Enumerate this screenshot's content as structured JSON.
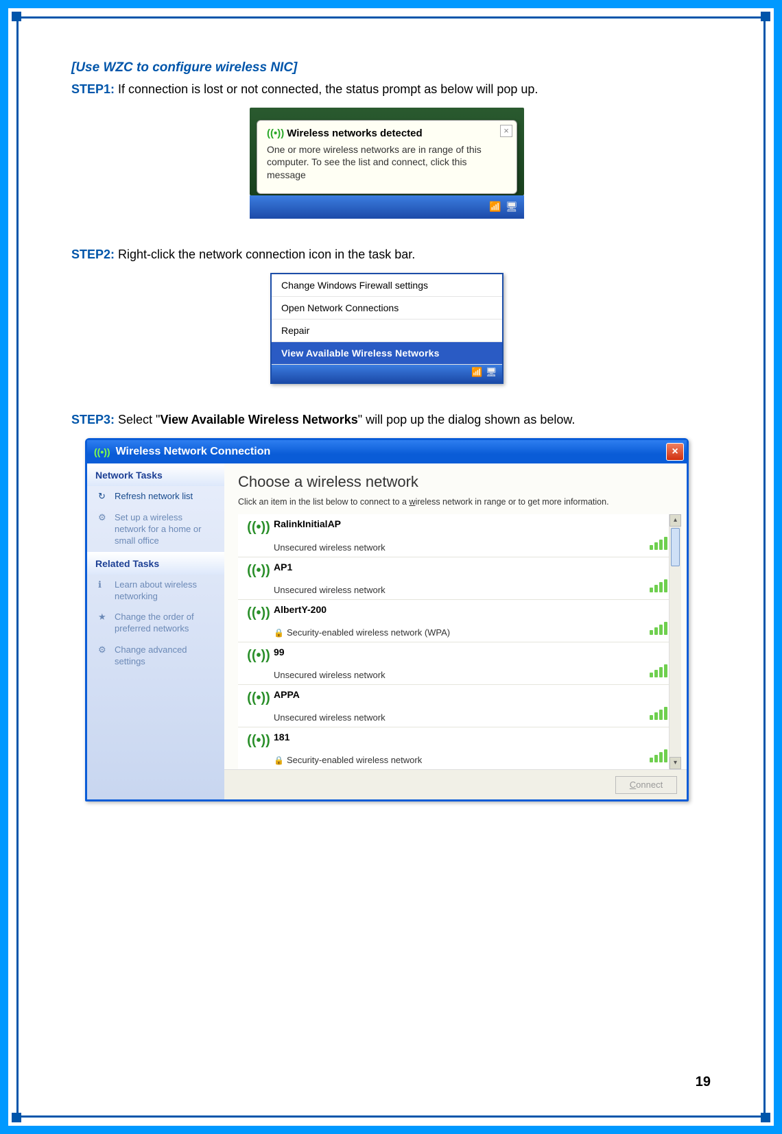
{
  "heading": "[Use WZC to configure wireless NIC]",
  "steps": {
    "s1_label": "STEP1:",
    "s1_text": " If connection is lost or not connected, the status prompt as below will pop up.",
    "s2_label": "STEP2:",
    "s2_text": " Right-click the network connection icon in the task bar.",
    "s3_label": "STEP3:",
    "s3_a": " Select \"",
    "s3_bold": "View Available Wireless Networks",
    "s3_b": "\" will pop up the dialog shown as below."
  },
  "balloon": {
    "title": "Wireless networks detected",
    "text": "One or more wireless networks are in range of this computer. To see the list and connect, click this message",
    "close": "×"
  },
  "ctx_menu": {
    "items": [
      "Change Windows Firewall settings",
      "Open Network Connections",
      "Repair",
      "View Available Wireless Networks"
    ]
  },
  "win": {
    "title": "Wireless Network Connection",
    "close": "×",
    "sidebar": {
      "g1_header": "Network Tasks",
      "g1_items": [
        {
          "icon": "↻",
          "label": "Refresh network list"
        },
        {
          "icon": "⚙",
          "label": "Set up a wireless network for a home or small office"
        }
      ],
      "g2_header": "Related Tasks",
      "g2_items": [
        {
          "icon": "ℹ",
          "label": "Learn about wireless networking"
        },
        {
          "icon": "★",
          "label": "Change the order of preferred networks"
        },
        {
          "icon": "⚙",
          "label": "Change advanced settings"
        }
      ]
    },
    "main_title": "Choose a wireless network",
    "main_sub_a": "Click an item in the list below to connect to a ",
    "main_sub_u": "w",
    "main_sub_b": "ireless network in range or to get more information.",
    "networks": [
      {
        "name": "RalinkInitialAP",
        "desc": "Unsecured wireless network",
        "secure": false
      },
      {
        "name": "AP1",
        "desc": "Unsecured wireless network",
        "secure": false
      },
      {
        "name": "AlbertY-200",
        "desc": "Security-enabled wireless network (WPA)",
        "secure": true
      },
      {
        "name": "99",
        "desc": "Unsecured wireless network",
        "secure": false
      },
      {
        "name": "APPA",
        "desc": "Unsecured wireless network",
        "secure": false
      },
      {
        "name": "181",
        "desc": "Security-enabled wireless network",
        "secure": true
      }
    ],
    "connect_u": "C",
    "connect_rest": "onnect"
  },
  "page_number": "19"
}
